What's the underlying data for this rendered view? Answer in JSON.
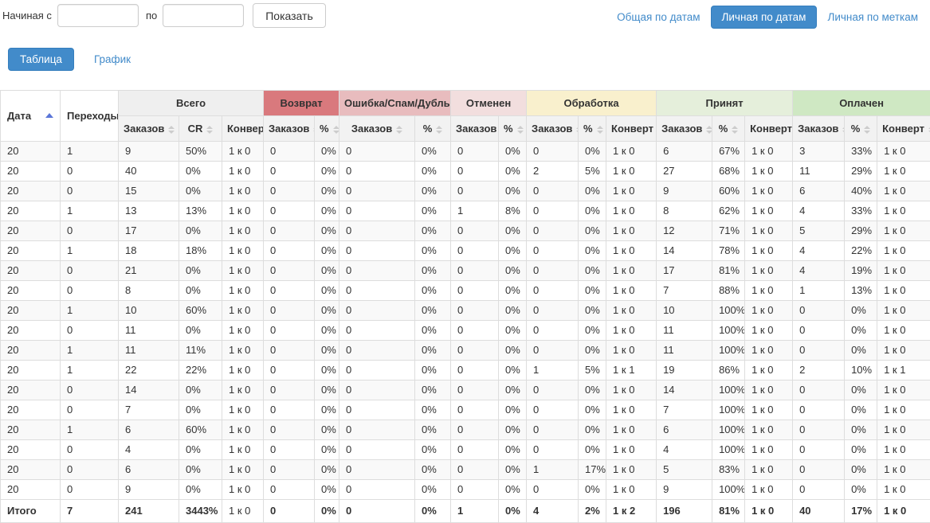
{
  "filter_bar": {
    "from_label": "Начиная с",
    "to_label": "по",
    "from_value": "",
    "to_value": "",
    "show_label": "Показать"
  },
  "view_switcher": {
    "items": [
      {
        "label": "Общая по датам",
        "active": false
      },
      {
        "label": "Личная по датам",
        "active": true
      },
      {
        "label": "Личная по меткам",
        "active": false
      }
    ]
  },
  "tabs": [
    {
      "label": "Таблица",
      "active": true
    },
    {
      "label": "График",
      "active": false
    }
  ],
  "colors": {
    "accent_blue": "#428bca",
    "accent_blue_border": "#357ebd",
    "sort_active": "#5b76d8",
    "group_total": "#efefef",
    "group_return": "#d9797d",
    "group_error": "#e8bcbe",
    "group_cancelled": "#f2dede",
    "group_processing": "#f9f0cd",
    "group_accepted": "#e5efdb",
    "group_paid": "#cfe8c3"
  },
  "table": {
    "date_header": "Дата",
    "transitions_header": "Переходы",
    "groups": [
      {
        "label": "Всего",
        "colorKey": "group_total",
        "cols": [
          "Заказов",
          "CR",
          "Конверт"
        ]
      },
      {
        "label": "Возврат",
        "colorKey": "group_return",
        "cols": [
          "Заказов",
          "%"
        ]
      },
      {
        "label": "Ошибка/Спам/Дубль",
        "colorKey": "group_error",
        "cols": [
          "Заказов",
          "%"
        ]
      },
      {
        "label": "Отменен",
        "colorKey": "group_cancelled",
        "cols": [
          "Заказов",
          "%"
        ]
      },
      {
        "label": "Обработка",
        "colorKey": "group_processing",
        "cols": [
          "Заказов",
          "%",
          "Конверт"
        ]
      },
      {
        "label": "Принят",
        "colorKey": "group_accepted",
        "cols": [
          "Заказов",
          "%",
          "Конверт"
        ]
      },
      {
        "label": "Оплачен",
        "colorKey": "group_paid",
        "cols": [
          "Заказов",
          "%",
          "Конверт"
        ]
      }
    ],
    "rows": [
      [
        "20",
        "1",
        "9",
        "50%",
        "1 к 0",
        "0",
        "0%",
        "0",
        "0%",
        "0",
        "0%",
        "0",
        "0%",
        "1 к 0",
        "6",
        "67%",
        "1 к 0",
        "3",
        "33%",
        "1 к 0"
      ],
      [
        "20",
        "0",
        "40",
        "0%",
        "1 к 0",
        "0",
        "0%",
        "0",
        "0%",
        "0",
        "0%",
        "2",
        "5%",
        "1 к 0",
        "27",
        "68%",
        "1 к 0",
        "11",
        "29%",
        "1 к 0"
      ],
      [
        "20",
        "0",
        "15",
        "0%",
        "1 к 0",
        "0",
        "0%",
        "0",
        "0%",
        "0",
        "0%",
        "0",
        "0%",
        "1 к 0",
        "9",
        "60%",
        "1 к 0",
        "6",
        "40%",
        "1 к 0"
      ],
      [
        "20",
        "1",
        "13",
        "13%",
        "1 к 0",
        "0",
        "0%",
        "0",
        "0%",
        "1",
        "8%",
        "0",
        "0%",
        "1 к 0",
        "8",
        "62%",
        "1 к 0",
        "4",
        "33%",
        "1 к 0"
      ],
      [
        "20",
        "0",
        "17",
        "0%",
        "1 к 0",
        "0",
        "0%",
        "0",
        "0%",
        "0",
        "0%",
        "0",
        "0%",
        "1 к 0",
        "12",
        "71%",
        "1 к 0",
        "5",
        "29%",
        "1 к 0"
      ],
      [
        "20",
        "1",
        "18",
        "18%",
        "1 к 0",
        "0",
        "0%",
        "0",
        "0%",
        "0",
        "0%",
        "0",
        "0%",
        "1 к 0",
        "14",
        "78%",
        "1 к 0",
        "4",
        "22%",
        "1 к 0"
      ],
      [
        "20",
        "0",
        "21",
        "0%",
        "1 к 0",
        "0",
        "0%",
        "0",
        "0%",
        "0",
        "0%",
        "0",
        "0%",
        "1 к 0",
        "17",
        "81%",
        "1 к 0",
        "4",
        "19%",
        "1 к 0"
      ],
      [
        "20",
        "0",
        "8",
        "0%",
        "1 к 0",
        "0",
        "0%",
        "0",
        "0%",
        "0",
        "0%",
        "0",
        "0%",
        "1 к 0",
        "7",
        "88%",
        "1 к 0",
        "1",
        "13%",
        "1 к 0"
      ],
      [
        "20",
        "1",
        "10",
        "60%",
        "1 к 0",
        "0",
        "0%",
        "0",
        "0%",
        "0",
        "0%",
        "0",
        "0%",
        "1 к 0",
        "10",
        "100%",
        "1 к 0",
        "0",
        "0%",
        "1 к 0"
      ],
      [
        "20",
        "0",
        "11",
        "0%",
        "1 к 0",
        "0",
        "0%",
        "0",
        "0%",
        "0",
        "0%",
        "0",
        "0%",
        "1 к 0",
        "11",
        "100%",
        "1 к 0",
        "0",
        "0%",
        "1 к 0"
      ],
      [
        "20",
        "1",
        "11",
        "11%",
        "1 к 0",
        "0",
        "0%",
        "0",
        "0%",
        "0",
        "0%",
        "0",
        "0%",
        "1 к 0",
        "11",
        "100%",
        "1 к 0",
        "0",
        "0%",
        "1 к 0"
      ],
      [
        "20",
        "1",
        "22",
        "22%",
        "1 к 0",
        "0",
        "0%",
        "0",
        "0%",
        "0",
        "0%",
        "1",
        "5%",
        "1 к 1",
        "19",
        "86%",
        "1 к 0",
        "2",
        "10%",
        "1 к 1"
      ],
      [
        "20",
        "0",
        "14",
        "0%",
        "1 к 0",
        "0",
        "0%",
        "0",
        "0%",
        "0",
        "0%",
        "0",
        "0%",
        "1 к 0",
        "14",
        "100%",
        "1 к 0",
        "0",
        "0%",
        "1 к 0"
      ],
      [
        "20",
        "0",
        "7",
        "0%",
        "1 к 0",
        "0",
        "0%",
        "0",
        "0%",
        "0",
        "0%",
        "0",
        "0%",
        "1 к 0",
        "7",
        "100%",
        "1 к 0",
        "0",
        "0%",
        "1 к 0"
      ],
      [
        "20",
        "1",
        "6",
        "60%",
        "1 к 0",
        "0",
        "0%",
        "0",
        "0%",
        "0",
        "0%",
        "0",
        "0%",
        "1 к 0",
        "6",
        "100%",
        "1 к 0",
        "0",
        "0%",
        "1 к 0"
      ],
      [
        "20",
        "0",
        "4",
        "0%",
        "1 к 0",
        "0",
        "0%",
        "0",
        "0%",
        "0",
        "0%",
        "0",
        "0%",
        "1 к 0",
        "4",
        "100%",
        "1 к 0",
        "0",
        "0%",
        "1 к 0"
      ],
      [
        "20",
        "0",
        "6",
        "0%",
        "1 к 0",
        "0",
        "0%",
        "0",
        "0%",
        "0",
        "0%",
        "1",
        "17%",
        "1 к 0",
        "5",
        "83%",
        "1 к 0",
        "0",
        "0%",
        "1 к 0"
      ],
      [
        "20",
        "0",
        "9",
        "0%",
        "1 к 0",
        "0",
        "0%",
        "0",
        "0%",
        "0",
        "0%",
        "0",
        "0%",
        "1 к 0",
        "9",
        "100%",
        "1 к 0",
        "0",
        "0%",
        "1 к 0"
      ]
    ],
    "totals": {
      "label": "Итого",
      "values": [
        "7",
        "241",
        "3443%",
        "1 к 0",
        "0",
        "0%",
        "0",
        "0%",
        "1",
        "0%",
        "4",
        "2%",
        "1 к 2",
        "196",
        "81%",
        "1 к 0",
        "40",
        "17%",
        "1 к 0"
      ]
    }
  }
}
